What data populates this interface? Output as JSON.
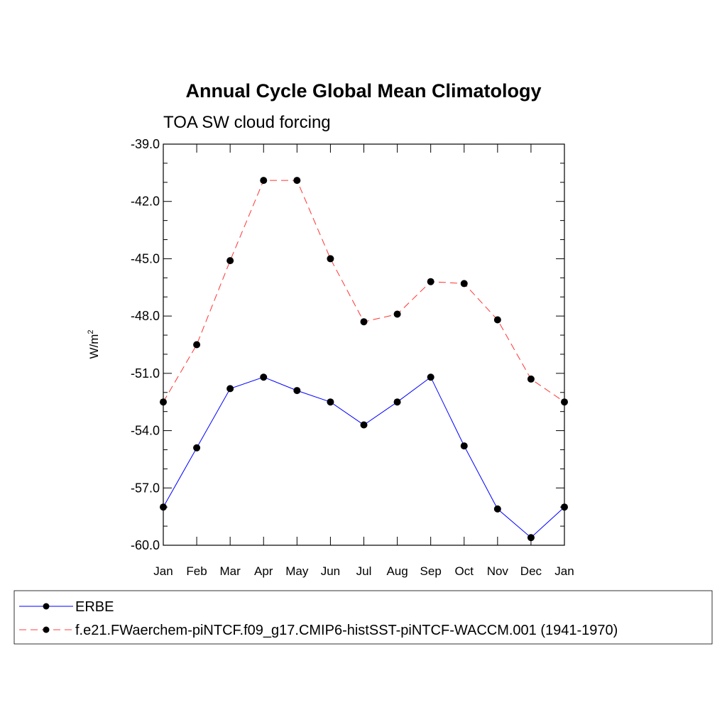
{
  "chart_data": {
    "type": "line",
    "title": "Annual Cycle Global Mean Climatology",
    "subtitle": "TOA SW cloud forcing",
    "ylabel": "W/m",
    "ylabel_superscript": "2",
    "xlabel": "",
    "categories": [
      "Jan",
      "Feb",
      "Mar",
      "Apr",
      "May",
      "Jun",
      "Jul",
      "Aug",
      "Sep",
      "Oct",
      "Nov",
      "Dec",
      "Jan"
    ],
    "ylim": [
      -60.0,
      -39.0
    ],
    "yticks": [
      "-60.0",
      "-57.0",
      "-54.0",
      "-51.0",
      "-48.0",
      "-45.0",
      "-42.0",
      "-39.0"
    ],
    "ytick_values": [
      -60,
      -57,
      -54,
      -51,
      -48,
      -45,
      -42,
      -39
    ],
    "grid": false,
    "legend_position": "bottom",
    "series": [
      {
        "name": "ERBE",
        "color": "#0000ff",
        "dash": "solid",
        "values": [
          -58.0,
          -54.9,
          -51.8,
          -51.2,
          -51.9,
          -52.5,
          -53.7,
          -52.5,
          -51.2,
          -54.8,
          -58.1,
          -59.6,
          -58.0
        ]
      },
      {
        "name": "f.e21.FWaerchem-piNTCF.f09_g17.CMIP6-histSST-piNTCF-WACCM.001 (1941-1970)",
        "color": "#ff0000",
        "dash": "dashed",
        "values": [
          -52.5,
          -49.5,
          -45.1,
          -40.9,
          -40.9,
          -45.0,
          -48.3,
          -47.9,
          -46.2,
          -46.3,
          -48.2,
          -51.3,
          -52.5
        ]
      }
    ]
  }
}
